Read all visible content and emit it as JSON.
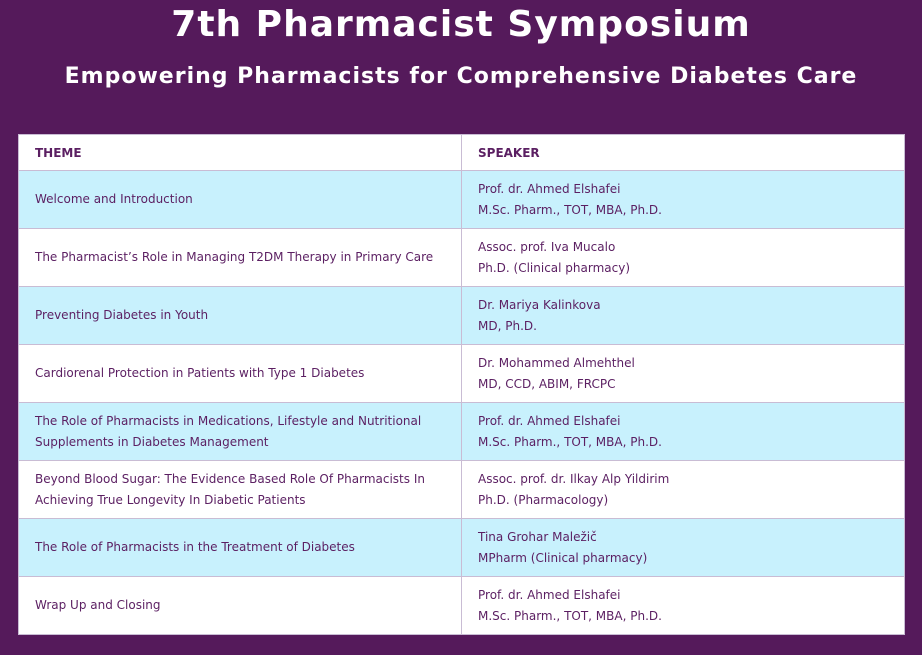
{
  "header": {
    "title": "7th Pharmacist Symposium",
    "subtitle": "Empowering Pharmacists for Comprehensive Diabetes Care"
  },
  "table": {
    "columns": [
      "THEME",
      "SPEAKER"
    ],
    "rows": [
      {
        "theme": "Welcome and Introduction",
        "speaker": "Prof. dr. Ahmed Elshafei",
        "credentials": "M.Sc. Pharm., TOT, MBA, Ph.D."
      },
      {
        "theme": "The Pharmacist’s Role in Managing T2DM Therapy in Primary Care",
        "speaker": "Assoc. prof. Iva Mucalo",
        "credentials": "Ph.D. (Clinical pharmacy)"
      },
      {
        "theme": "Preventing Diabetes in Youth",
        "speaker": "Dr. Mariya Kalinkova",
        "credentials": "MD, Ph.D."
      },
      {
        "theme": "Cardiorenal Protection in Patients with Type 1 Diabetes",
        "speaker": "Dr. Mohammed Almehthel",
        "credentials": "MD, CCD, ABIM, FRCPC"
      },
      {
        "theme": "The Role of Pharmacists in Medications, Lifestyle and Nutritional Supplements in Diabetes Management",
        "speaker": "Prof. dr. Ahmed Elshafei",
        "credentials": "M.Sc. Pharm., TOT, MBA, Ph.D."
      },
      {
        "theme": "Beyond Blood Sugar: The Evidence Based Role Of Pharmacists In Achieving True Longevity In Diabetic Patients",
        "speaker": "Assoc. prof. dr. Ilkay Alp Yildirim",
        "credentials": "Ph.D. (Pharmacology)"
      },
      {
        "theme": "The Role of Pharmacists in the Treatment of Diabetes",
        "speaker": "Tina Grohar Maležič",
        "credentials": "MPharm (Clinical pharmacy)"
      },
      {
        "theme": "Wrap Up and Closing",
        "speaker": "Prof. dr. Ahmed Elshafei",
        "credentials": "M.Sc. Pharm., TOT, MBA, Ph.D."
      }
    ]
  },
  "colors": {
    "background": "#551a5b",
    "row_alt": "#c8f1fd",
    "text": "#5b1f62"
  }
}
